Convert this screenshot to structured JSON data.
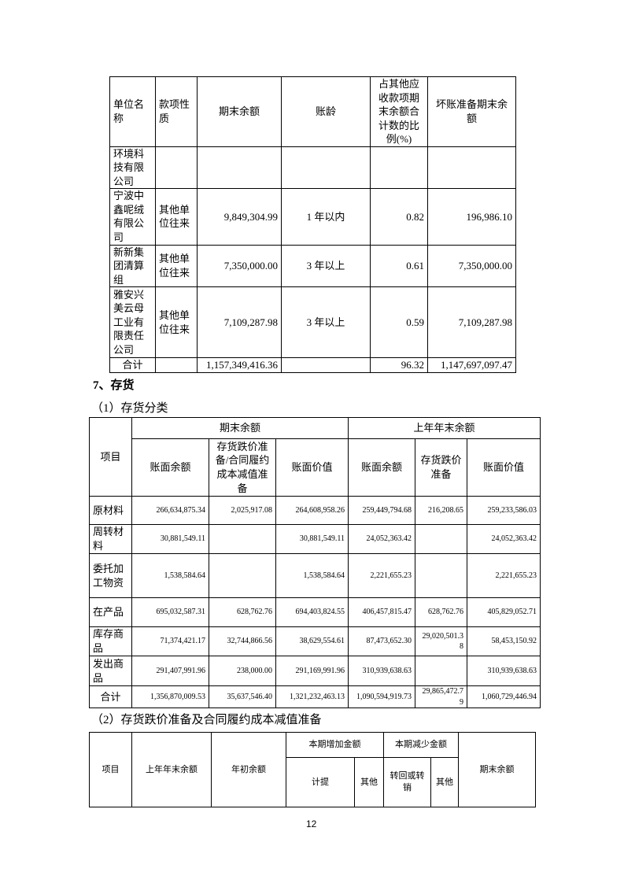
{
  "table1": {
    "headers": [
      "单位名称",
      "款项性质",
      "期末余额",
      "账龄",
      "占其他应收款项期末余额合计数的比例(%)",
      "坏账准备期末余额"
    ],
    "rows": [
      [
        "环境科技有限公司",
        "",
        "",
        "",
        "",
        ""
      ],
      [
        "宁波中鑫呢绒有限公司",
        "其他单位往来",
        "9,849,304.99",
        "1 年以内",
        "0.82",
        "196,986.10"
      ],
      [
        "新新集团清算组",
        "其他单位往来",
        "7,350,000.00",
        "3 年以上",
        "0.61",
        "7,350,000.00"
      ],
      [
        "雅安兴美云母工业有限责任公司",
        "其他单位往来",
        "7,109,287.98",
        "3 年以上",
        "0.59",
        "7,109,287.98"
      ]
    ],
    "total": [
      "合计",
      "",
      "1,157,349,416.36",
      "",
      "96.32",
      "1,147,697,097.47"
    ]
  },
  "section_title": "7、存货",
  "sub1": "（1）存货分类",
  "table2": {
    "item": "项目",
    "group1": "期末余额",
    "group2": "上年年末余额",
    "subheaders": [
      "账面余额",
      "存货跌价准备/合同履约成本减值准备",
      "账面价值",
      "账面余额",
      "存货跌价准备",
      "账面价值"
    ],
    "rows": [
      [
        "原材料",
        "266,634,875.34",
        "2,025,917.08",
        "264,608,958.26",
        "259,449,794.68",
        "216,208.65",
        "259,233,586.03"
      ],
      [
        "周转材料",
        "30,881,549.11",
        "",
        "30,881,549.11",
        "24,052,363.42",
        "",
        "24,052,363.42"
      ],
      [
        "委托加工物资",
        "1,538,584.64",
        "",
        "1,538,584.64",
        "2,221,655.23",
        "",
        "2,221,655.23"
      ],
      [
        "在产品",
        "695,032,587.31",
        "628,762.76",
        "694,403,824.55",
        "406,457,815.47",
        "628,762.76",
        "405,829,052.71"
      ],
      [
        "库存商品",
        "71,374,421.17",
        "32,744,866.56",
        "38,629,554.61",
        "87,473,652.30",
        "29,020,501.38",
        "58,453,150.92"
      ],
      [
        "发出商品",
        "291,407,991.96",
        "238,000.00",
        "291,169,991.96",
        "310,939,638.63",
        "",
        "310,939,638.63"
      ],
      [
        "合计",
        "1,356,870,009.53",
        "35,637,546.40",
        "1,321,232,463.13",
        "1,090,594,919.73",
        "29,865,472.79",
        "1,060,729,446.94"
      ]
    ]
  },
  "sub2": "（2）存货跌价准备及合同履约成本减值准备",
  "table3": {
    "item": "项目",
    "prev": "上年年末余额",
    "open": "年初余额",
    "inc": "本期增加金额",
    "dec": "本期减少金额",
    "end": "期末余额",
    "inc_sub": [
      "计提",
      "其他"
    ],
    "dec_sub": [
      "转回或转销",
      "其他"
    ]
  },
  "page_number": "12"
}
